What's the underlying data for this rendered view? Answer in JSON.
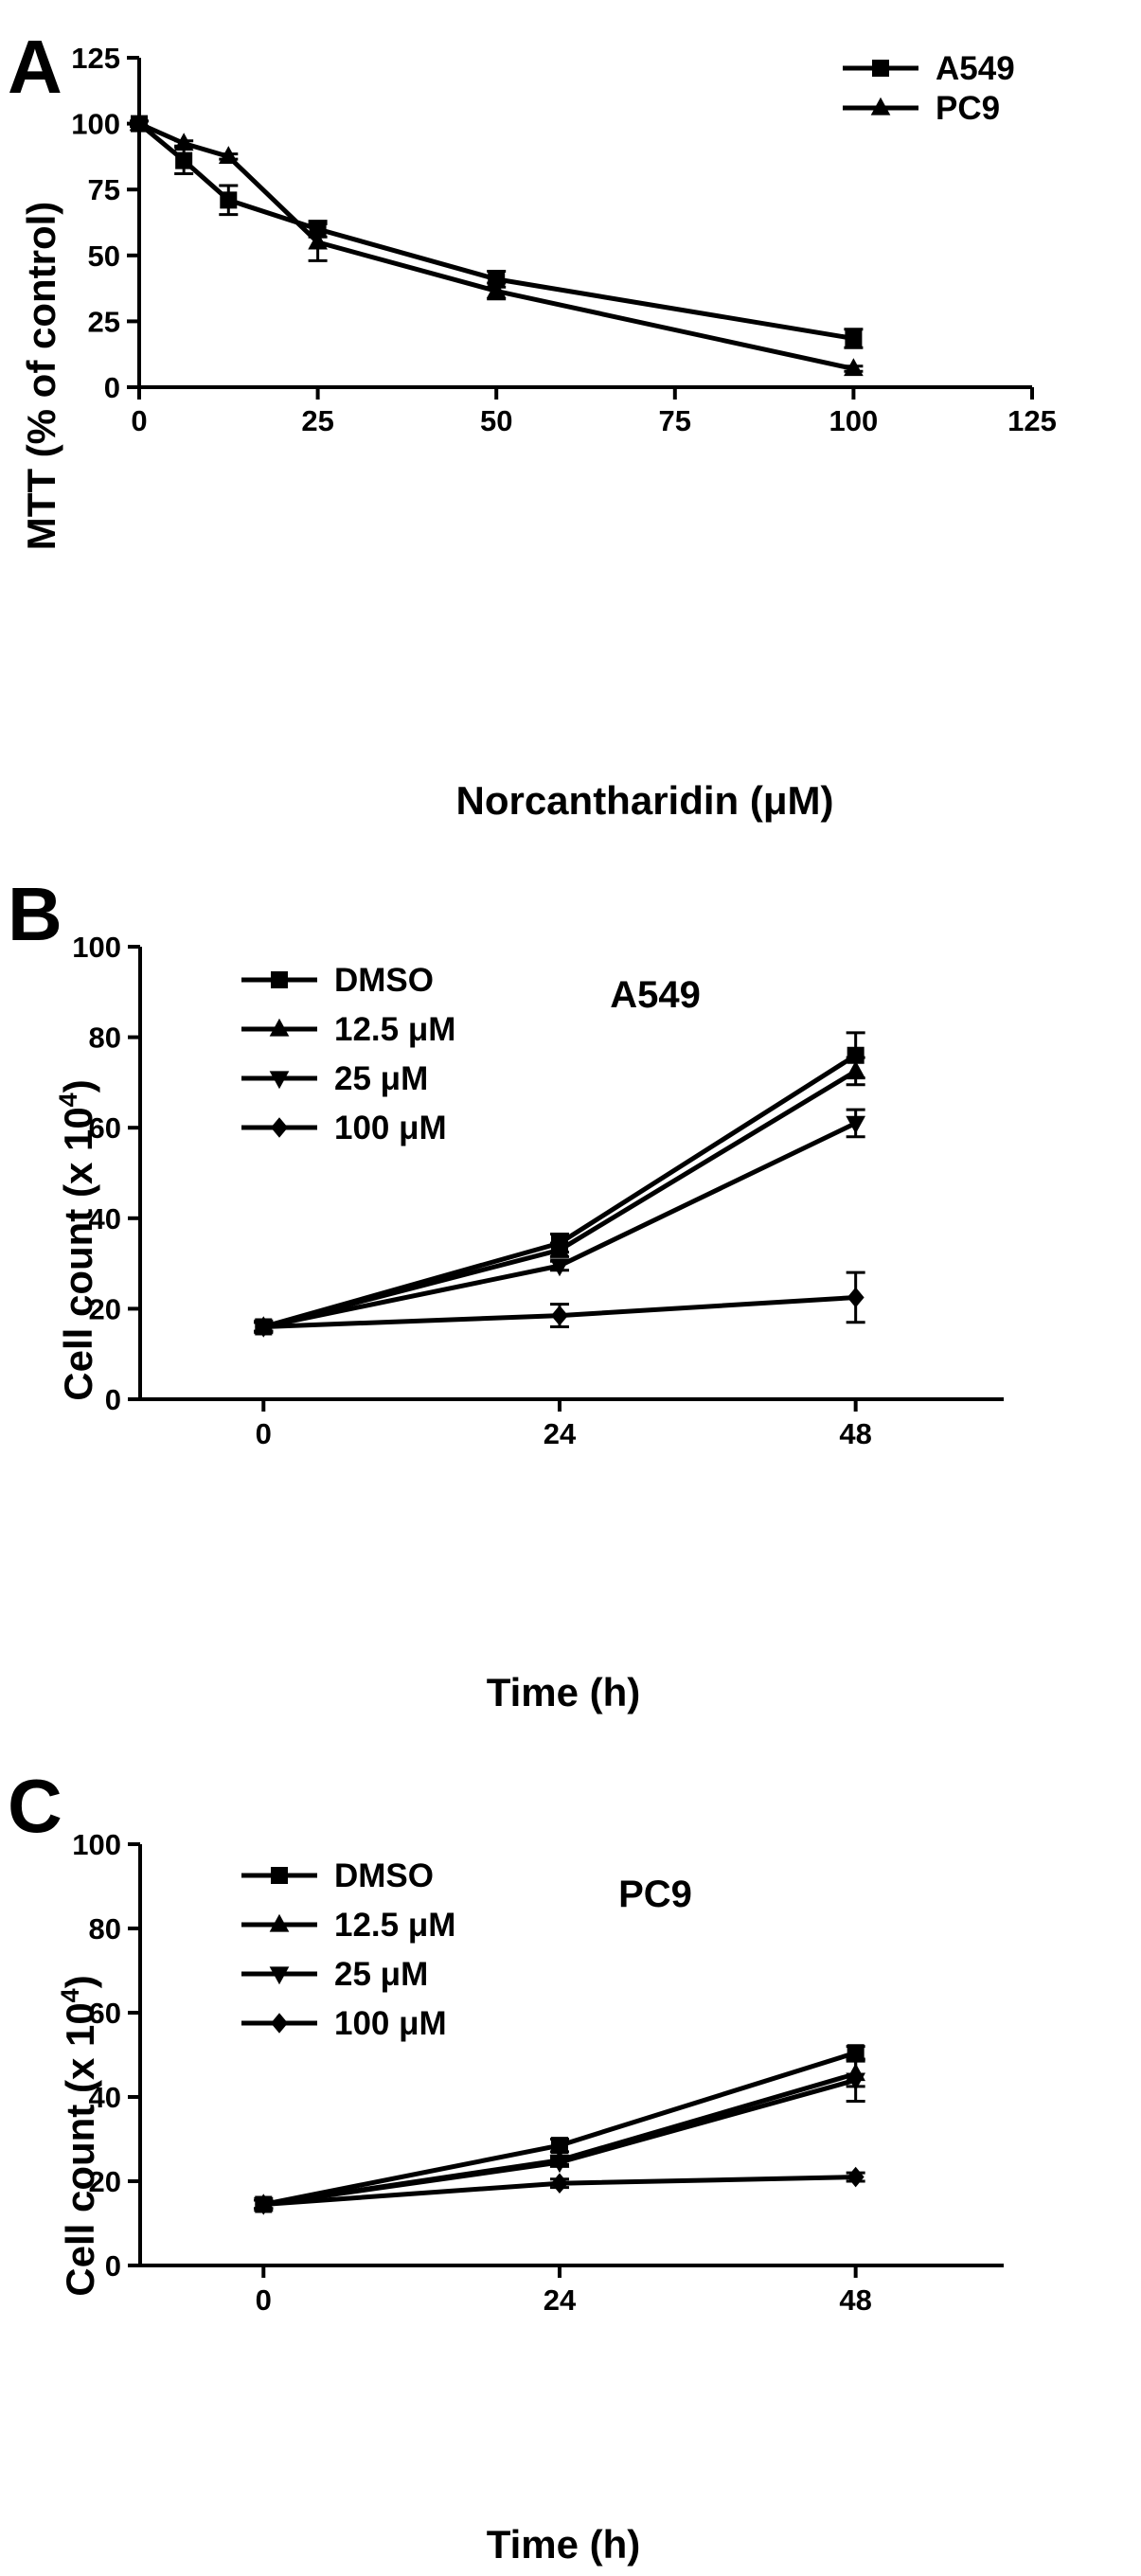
{
  "chart_data": [
    {
      "panel": "A",
      "type": "line",
      "title": "",
      "xlabel": "Norcantharidin (μM)",
      "ylabel": "MTT  (% of control)",
      "xlim": [
        0,
        125
      ],
      "ylim": [
        0,
        125
      ],
      "xticks": [
        0,
        25,
        50,
        75,
        100,
        125
      ],
      "yticks": [
        0,
        25,
        50,
        75,
        100,
        125
      ],
      "legend_position": "top-right",
      "series": [
        {
          "name": "A549",
          "marker": "square",
          "points": [
            {
              "x": 0,
              "y": 100,
              "err": 1
            },
            {
              "x": 6.25,
              "y": 86,
              "err": 5
            },
            {
              "x": 12.5,
              "y": 71,
              "err": 5.5
            },
            {
              "x": 25,
              "y": 60,
              "err": 3
            },
            {
              "x": 50,
              "y": 41,
              "err": 3
            },
            {
              "x": 100,
              "y": 18.5,
              "err": 3.5
            }
          ]
        },
        {
          "name": "PC9",
          "marker": "triangle-up",
          "points": [
            {
              "x": 0,
              "y": 100,
              "err": 1
            },
            {
              "x": 6.25,
              "y": 92.5,
              "err": 1
            },
            {
              "x": 12.5,
              "y": 87.5,
              "err": 1
            },
            {
              "x": 25,
              "y": 55,
              "err": 7
            },
            {
              "x": 50,
              "y": 36.5,
              "err": 3
            },
            {
              "x": 100,
              "y": 7,
              "err": 1
            }
          ]
        }
      ]
    },
    {
      "panel": "B",
      "type": "line",
      "title": "A549",
      "xlabel": "Time (h)",
      "ylabel": "Cell count  (x 10",
      "ylabel_sup": "4",
      "ylabel_close": ")",
      "xlim": [
        -10,
        60
      ],
      "ylim": [
        0,
        100
      ],
      "xticks": [
        0,
        24,
        48
      ],
      "yticks": [
        0,
        20,
        40,
        60,
        80,
        100
      ],
      "legend_position": "top-left",
      "series": [
        {
          "name": "DMSO",
          "marker": "square",
          "points": [
            {
              "x": 0,
              "y": 16,
              "err": 1
            },
            {
              "x": 24,
              "y": 34.5,
              "err": 2
            },
            {
              "x": 48,
              "y": 76,
              "err": 5
            }
          ]
        },
        {
          "name": "12.5 μM",
          "marker": "triangle-up",
          "points": [
            {
              "x": 0,
              "y": 16,
              "err": 1
            },
            {
              "x": 24,
              "y": 33,
              "err": 1.5
            },
            {
              "x": 48,
              "y": 72.5,
              "err": 3
            }
          ]
        },
        {
          "name": "25 μM",
          "marker": "triangle-down",
          "points": [
            {
              "x": 0,
              "y": 16,
              "err": 1
            },
            {
              "x": 24,
              "y": 29.5,
              "err": 1
            },
            {
              "x": 48,
              "y": 61,
              "err": 3
            }
          ]
        },
        {
          "name": "100 μM",
          "marker": "diamond",
          "points": [
            {
              "x": 0,
              "y": 16,
              "err": 1
            },
            {
              "x": 24,
              "y": 18.5,
              "err": 2.5
            },
            {
              "x": 48,
              "y": 22.5,
              "err": 5.5
            }
          ]
        }
      ]
    },
    {
      "panel": "C",
      "type": "line",
      "title": "PC9",
      "xlabel": "Time (h)",
      "ylabel": "Cell count  (x 10",
      "ylabel_sup": "4",
      "ylabel_close": ")",
      "xlim": [
        -10,
        60
      ],
      "ylim": [
        0,
        100
      ],
      "xticks": [
        0,
        24,
        48
      ],
      "yticks": [
        0,
        20,
        40,
        60,
        80,
        100
      ],
      "legend_position": "top-left",
      "series": [
        {
          "name": "DMSO",
          "marker": "square",
          "points": [
            {
              "x": 0,
              "y": 14.5,
              "err": 1
            },
            {
              "x": 24,
              "y": 28.5,
              "err": 1.5
            },
            {
              "x": 48,
              "y": 50.5,
              "err": 1.5
            }
          ]
        },
        {
          "name": "12.5 μM",
          "marker": "triangle-up",
          "points": [
            {
              "x": 0,
              "y": 14.5,
              "err": 1
            },
            {
              "x": 24,
              "y": 25,
              "err": 1
            },
            {
              "x": 48,
              "y": 45.5,
              "err": 3
            }
          ]
        },
        {
          "name": "25 μM",
          "marker": "triangle-down",
          "points": [
            {
              "x": 0,
              "y": 14.5,
              "err": 1
            },
            {
              "x": 24,
              "y": 24.5,
              "err": 1
            },
            {
              "x": 48,
              "y": 44,
              "err": 5
            }
          ]
        },
        {
          "name": "100 μM",
          "marker": "diamond",
          "points": [
            {
              "x": 0,
              "y": 14.5,
              "err": 1
            },
            {
              "x": 24,
              "y": 19.5,
              "err": 1
            },
            {
              "x": 48,
              "y": 21,
              "err": 1
            }
          ]
        }
      ]
    }
  ]
}
